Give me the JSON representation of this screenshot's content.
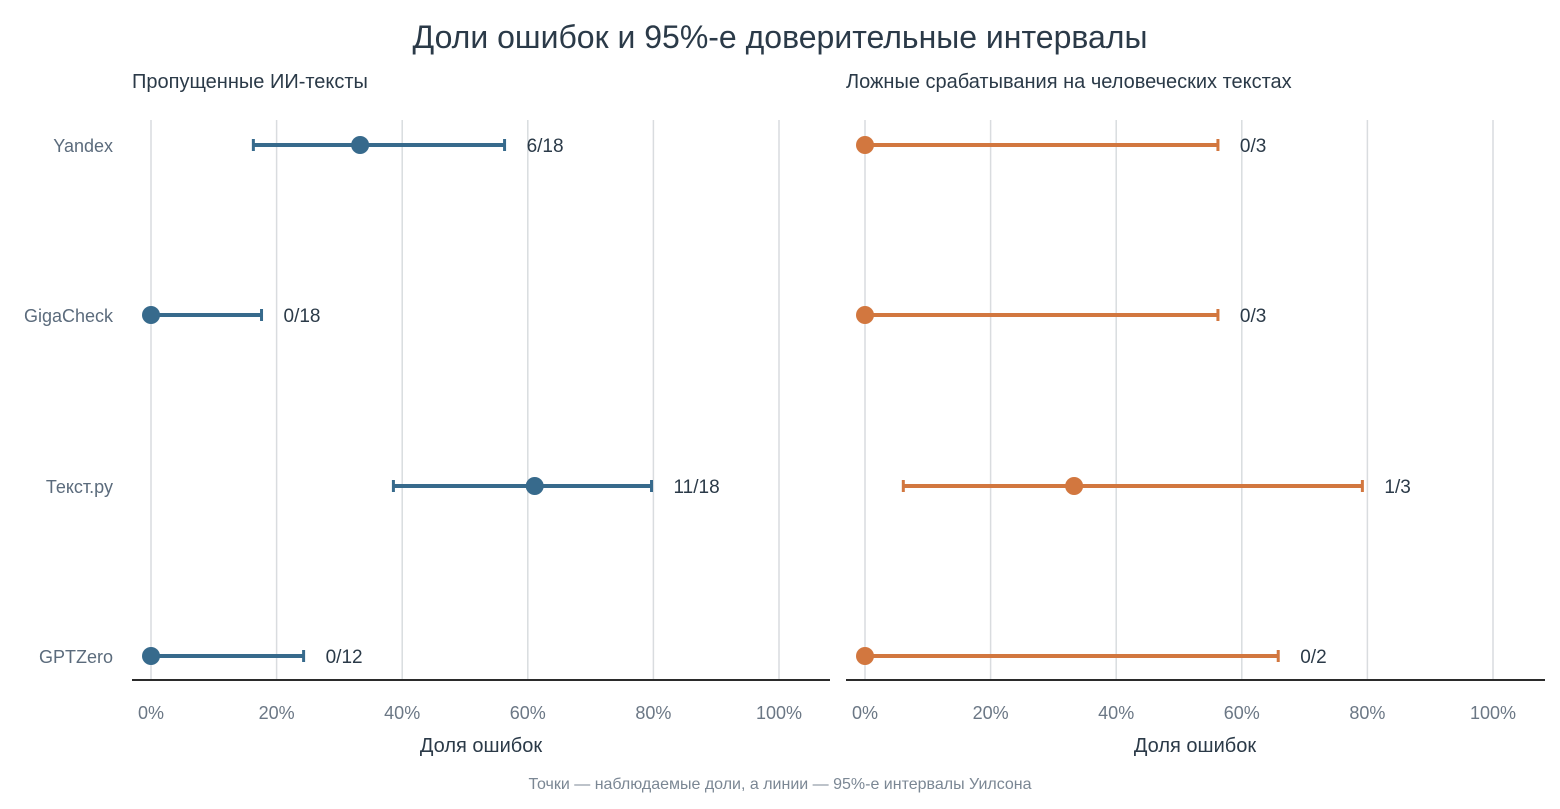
{
  "title": "Доли ошибок и 95%-е доверительные интервалы",
  "caption": "Точки — наблюдаемые доли, а линии — 95%-е интервалы Уилсона",
  "chart_data": [
    {
      "type": "scatter",
      "subtitle": "Пропущенные ИИ-тексты",
      "xlabel": "Доля ошибок",
      "xlim": [
        0,
        1
      ],
      "xticks": [
        0,
        0.2,
        0.4,
        0.6,
        0.8,
        1.0
      ],
      "xtick_labels": [
        "0%",
        "20%",
        "40%",
        "60%",
        "80%",
        "100%"
      ],
      "grid": true,
      "color": "#376a8c",
      "categories": [
        "Yandex",
        "GigaCheck",
        "Текст.ру",
        "GPTZero"
      ],
      "points": [
        {
          "category": "Yandex",
          "value": 0.333,
          "ci_low": 0.163,
          "ci_high": 0.563,
          "label": "6/18"
        },
        {
          "category": "GigaCheck",
          "value": 0.0,
          "ci_low": 0.0,
          "ci_high": 0.176,
          "label": "0/18"
        },
        {
          "category": "Текст.ру",
          "value": 0.611,
          "ci_low": 0.386,
          "ci_high": 0.797,
          "label": "11/18"
        },
        {
          "category": "GPTZero",
          "value": 0.0,
          "ci_low": 0.0,
          "ci_high": 0.243,
          "label": "0/12"
        }
      ]
    },
    {
      "type": "scatter",
      "subtitle": "Ложные срабатывания на человеческих текстах",
      "xlabel": "Доля ошибок",
      "xlim": [
        0,
        1
      ],
      "xticks": [
        0,
        0.2,
        0.4,
        0.6,
        0.8,
        1.0
      ],
      "xtick_labels": [
        "0%",
        "20%",
        "40%",
        "60%",
        "80%",
        "100%"
      ],
      "grid": true,
      "color": "#d2773f",
      "categories": [
        "Yandex",
        "GigaCheck",
        "Текст.ру",
        "GPTZero"
      ],
      "points": [
        {
          "category": "Yandex",
          "value": 0.0,
          "ci_low": 0.0,
          "ci_high": 0.562,
          "label": "0/3"
        },
        {
          "category": "GigaCheck",
          "value": 0.0,
          "ci_low": 0.0,
          "ci_high": 0.562,
          "label": "0/3"
        },
        {
          "category": "Текст.ру",
          "value": 0.333,
          "ci_low": 0.061,
          "ci_high": 0.792,
          "label": "1/3"
        },
        {
          "category": "GPTZero",
          "value": 0.0,
          "ci_low": 0.0,
          "ci_high": 0.658,
          "label": "0/2"
        }
      ]
    }
  ]
}
